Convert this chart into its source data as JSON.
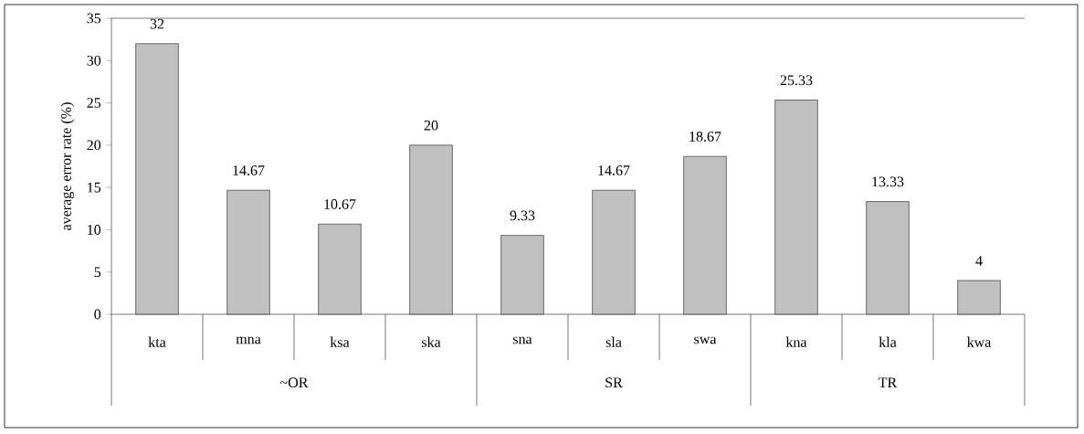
{
  "chart_data": {
    "type": "bar",
    "ylabel": "average error rate (%)",
    "categories": [
      "kta",
      "mna",
      "ksa",
      "ska",
      "sna",
      "sla",
      "swa",
      "kna",
      "kla",
      "kwa"
    ],
    "values": [
      32,
      14.67,
      10.67,
      20,
      9.33,
      14.67,
      18.67,
      25.33,
      13.33,
      4
    ],
    "color": "#c0c0c0",
    "ylim": [
      0,
      35
    ],
    "yticks": [
      0,
      5,
      10,
      15,
      20,
      25,
      30,
      35
    ],
    "data_labels": true,
    "annotations": [
      "~OR",
      "SR",
      "TR"
    ]
  }
}
